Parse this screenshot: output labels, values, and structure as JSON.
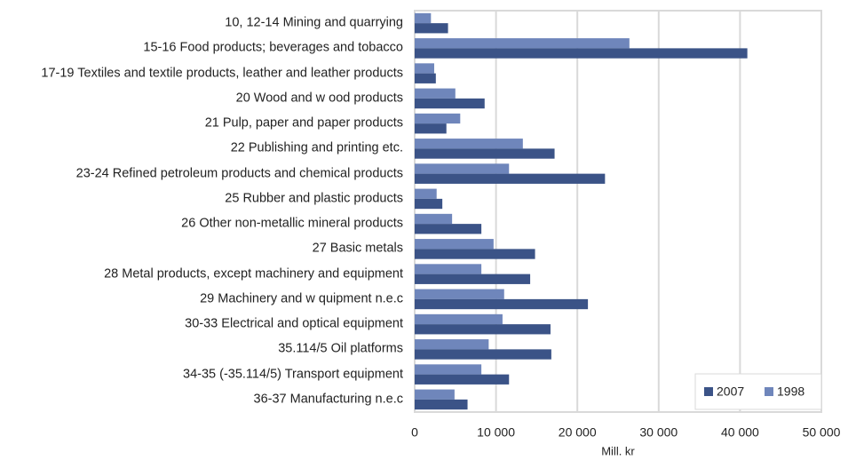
{
  "chart_data": {
    "type": "bar",
    "orientation": "horizontal",
    "x_label": "Mill. kr",
    "categories": [
      "10, 12-14 Mining and quarrying",
      "15-16 Food products; beverages and tobacco",
      "17-19 Textiles and textile products, leather and leather products",
      "20 Wood and w ood products",
      "21 Pulp, paper and paper products",
      "22 Publishing and printing etc.",
      "23-24 Refined petroleum products and chemical products",
      "25 Rubber and plastic products",
      "26 Other non-metallic mineral products",
      "27 Basic metals",
      "28 Metal products, except machinery and equipment",
      "29 Machinery and w quipment n.e.c",
      "30-33 Electrical and optical equipment",
      "35.114/5 Oil platforms",
      "34-35 (-35.114/5) Transport equipment",
      "36-37 Manufacturing n.e.c"
    ],
    "series": [
      {
        "name": "2007",
        "color": "#3b5387",
        "values": [
          4100,
          40900,
          2600,
          8600,
          3900,
          17200,
          23400,
          3400,
          8200,
          14800,
          14200,
          21300,
          16700,
          16800,
          11600,
          6500
        ]
      },
      {
        "name": "1998",
        "color": "#6f86bb",
        "values": [
          2000,
          26400,
          2400,
          5000,
          5600,
          13300,
          11600,
          2700,
          4600,
          9700,
          8200,
          11000,
          10800,
          9100,
          8200,
          4900
        ]
      }
    ],
    "xlim": [
      0,
      50000
    ],
    "xticks": [
      0,
      {
        "value": 10000,
        "label": "10 000"
      },
      {
        "value": 20000,
        "label": "20 000"
      },
      {
        "value": 30000,
        "label": "30 000"
      },
      {
        "value": 40000,
        "label": "40 000"
      },
      {
        "value": 50000,
        "label": "50 000"
      }
    ],
    "grid": true,
    "legend": "lower right"
  }
}
